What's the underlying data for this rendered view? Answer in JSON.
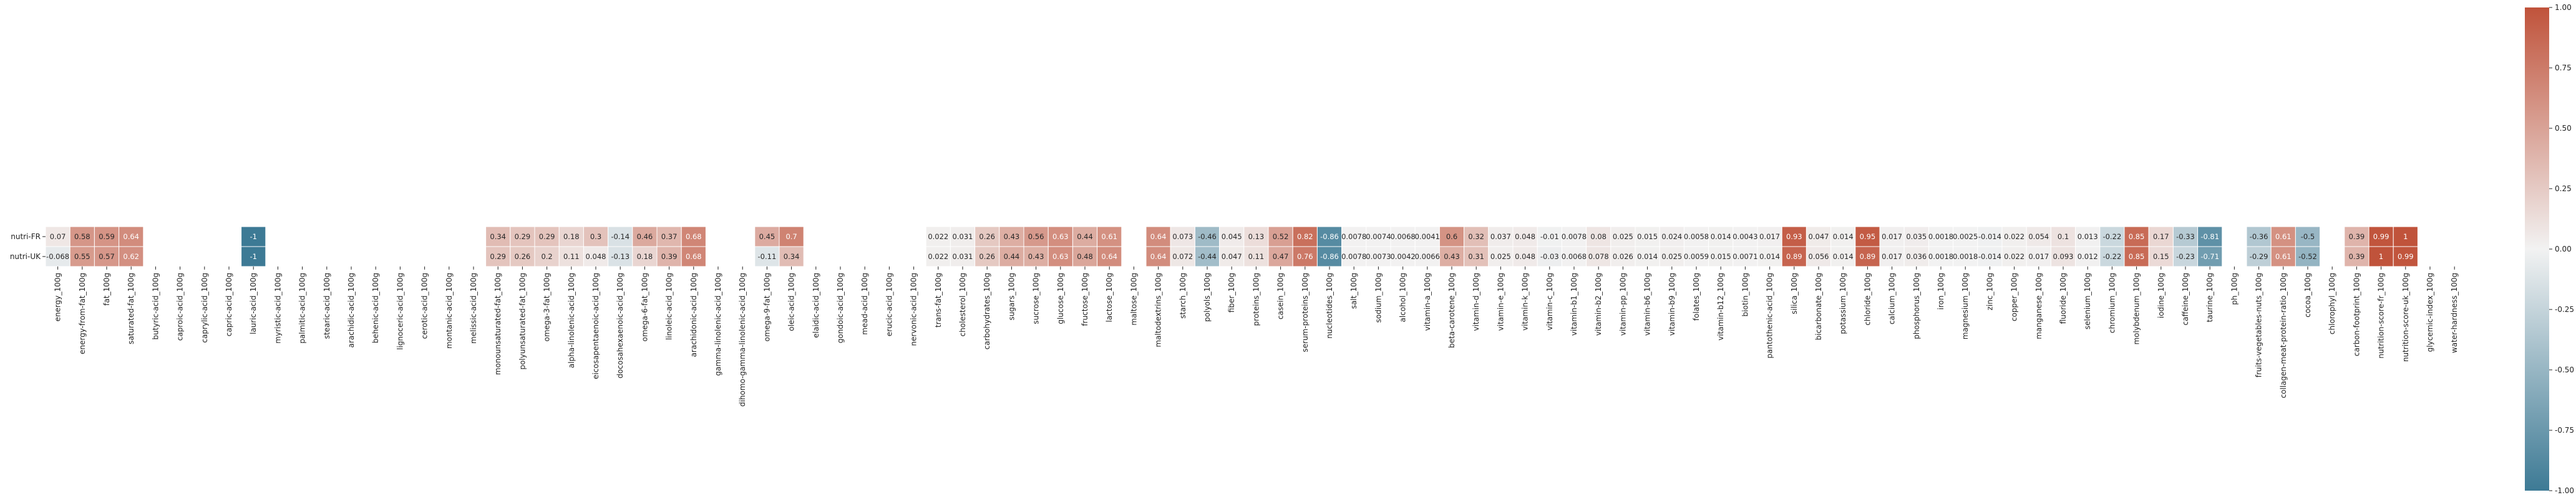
{
  "chart_data": {
    "type": "heatmap",
    "rows": [
      "nutri-FR",
      "nutri-UK"
    ],
    "columns": [
      "energy_100g",
      "energy-from-fat_100g",
      "fat_100g",
      "saturated-fat_100g",
      "butyric-acid_100g",
      "caproic-acid_100g",
      "caprylic-acid_100g",
      "capric-acid_100g",
      "lauric-acid_100g",
      "myristic-acid_100g",
      "palmitic-acid_100g",
      "stearic-acid_100g",
      "arachidic-acid_100g",
      "behenic-acid_100g",
      "lignoceric-acid_100g",
      "cerotic-acid_100g",
      "montanic-acid_100g",
      "melissic-acid_100g",
      "monounsaturated-fat_100g",
      "polyunsaturated-fat_100g",
      "omega-3-fat_100g",
      "alpha-linolenic-acid_100g",
      "eicosapentaenoic-acid_100g",
      "docosahexaenoic-acid_100g",
      "omega-6-fat_100g",
      "linoleic-acid_100g",
      "arachidonic-acid_100g",
      "gamma-linolenic-acid_100g",
      "dihomo-gamma-linolenic-acid_100g",
      "omega-9-fat_100g",
      "oleic-acid_100g",
      "elaidic-acid_100g",
      "gondoic-acid_100g",
      "mead-acid_100g",
      "erucic-acid_100g",
      "nervonic-acid_100g",
      "trans-fat_100g",
      "cholesterol_100g",
      "carbohydrates_100g",
      "sugars_100g",
      "sucrose_100g",
      "glucose_100g",
      "fructose_100g",
      "lactose_100g",
      "maltose_100g",
      "maltodextrins_100g",
      "starch_100g",
      "polyols_100g",
      "fiber_100g",
      "proteins_100g",
      "casein_100g",
      "serum-proteins_100g",
      "nucleotides_100g",
      "salt_100g",
      "sodium_100g",
      "alcohol_100g",
      "vitamin-a_100g",
      "beta-carotene_100g",
      "vitamin-d_100g",
      "vitamin-e_100g",
      "vitamin-k_100g",
      "vitamin-c_100g",
      "vitamin-b1_100g",
      "vitamin-b2_100g",
      "vitamin-pp_100g",
      "vitamin-b6_100g",
      "vitamin-b9_100g",
      "folates_100g",
      "vitamin-b12_100g",
      "biotin_100g",
      "pantothenic-acid_100g",
      "silica_100g",
      "bicarbonate_100g",
      "potassium_100g",
      "chloride_100g",
      "calcium_100g",
      "phosphorus_100g",
      "iron_100g",
      "magnesium_100g",
      "zinc_100g",
      "copper_100g",
      "manganese_100g",
      "fluoride_100g",
      "selenium_100g",
      "chromium_100g",
      "molybdenum_100g",
      "iodine_100g",
      "caffeine_100g",
      "taurine_100g",
      "ph_100g",
      "fruits-vegetables-nuts_100g",
      "collagen-meat-protein-ratio_100g",
      "cocoa_100g",
      "chlorophyl_100g",
      "carbon-footprint_100g",
      "nutrition-score-fr_100g",
      "nutrition-score-uk_100g",
      "glycemic-index_100g",
      "water-hardness_100g"
    ],
    "values": [
      [
        0.07,
        0.58,
        0.59,
        0.64,
        null,
        null,
        null,
        null,
        -1,
        null,
        null,
        null,
        null,
        null,
        null,
        null,
        null,
        null,
        0.34,
        0.29,
        0.29,
        0.18,
        0.3,
        -0.14,
        0.46,
        0.37,
        0.68,
        null,
        null,
        0.45,
        0.7,
        null,
        null,
        null,
        null,
        null,
        0.022,
        0.031,
        0.26,
        0.43,
        0.56,
        0.63,
        0.44,
        0.61,
        null,
        0.64,
        0.073,
        -0.46,
        0.045,
        0.13,
        0.52,
        0.82,
        -0.86,
        0.0078,
        0.0074,
        0.0068,
        0.0041,
        0.6,
        0.32,
        0.037,
        0.048,
        -0.01,
        0.0078,
        0.08,
        0.025,
        0.015,
        0.024,
        0.0058,
        0.014,
        0.0043,
        0.017,
        0.93,
        0.047,
        0.014,
        0.95,
        0.017,
        0.035,
        0.0018,
        0.0025,
        -0.014,
        0.022,
        0.054,
        0.1,
        0.013,
        -0.22,
        0.85,
        0.17,
        -0.33,
        -0.81,
        null,
        -0.36,
        0.61,
        -0.5,
        null,
        0.39,
        0.99,
        1,
        null,
        null
      ],
      [
        -0.068,
        0.55,
        0.57,
        0.62,
        null,
        null,
        null,
        null,
        -1,
        null,
        null,
        null,
        null,
        null,
        null,
        null,
        null,
        null,
        0.29,
        0.26,
        0.2,
        0.11,
        0.048,
        -0.13,
        0.18,
        0.39,
        0.68,
        null,
        null,
        -0.11,
        0.34,
        null,
        null,
        null,
        null,
        null,
        0.022,
        0.031,
        0.26,
        0.44,
        0.43,
        0.63,
        0.48,
        0.64,
        null,
        0.64,
        0.072,
        -0.44,
        0.047,
        0.11,
        0.47,
        0.76,
        -0.86,
        0.0078,
        0.0073,
        0.0042,
        0.0066,
        0.43,
        0.31,
        0.025,
        0.048,
        -0.03,
        0.0068,
        0.078,
        0.026,
        0.014,
        0.025,
        0.0059,
        0.015,
        0.0071,
        0.014,
        0.89,
        0.056,
        0.014,
        0.89,
        0.017,
        0.036,
        0.0018,
        0.0018,
        -0.014,
        0.022,
        0.017,
        0.093,
        0.012,
        -0.22,
        0.85,
        0.15,
        -0.23,
        -0.71,
        null,
        -0.29,
        0.61,
        -0.52,
        null,
        0.39,
        1,
        0.99,
        null,
        null
      ]
    ],
    "value_labels": [
      [
        "0.07",
        "0.58",
        "0.59",
        "0.64",
        "",
        "",
        "",
        "",
        "-1",
        "",
        "",
        "",
        "",
        "",
        "",
        "",
        "",
        "",
        "0.34",
        "0.29",
        "0.29",
        "0.18",
        "0.3",
        "-0.14",
        "0.46",
        "0.37",
        "0.68",
        "",
        "",
        "0.45",
        "0.7",
        "",
        "",
        "",
        "",
        "",
        "0.022",
        "0.031",
        "0.26",
        "0.43",
        "0.56",
        "0.63",
        "0.44",
        "0.61",
        "",
        "0.64",
        "0.073",
        "-0.46",
        "0.045",
        "0.13",
        "0.52",
        "0.82",
        "-0.86",
        "0.0078",
        "0.0074",
        "0.0068",
        "0.0041",
        "0.6",
        "0.32",
        "0.037",
        "0.048",
        "-0.01",
        "0.0078",
        "0.08",
        "0.025",
        "0.015",
        "0.024",
        "0.0058",
        "0.014",
        "0.0043",
        "0.017",
        "0.93",
        "0.047",
        "0.014",
        "0.95",
        "0.017",
        "0.035",
        "0.0018",
        "0.0025",
        "-0.014",
        "0.022",
        "0.054",
        "0.1",
        "0.013",
        "-0.22",
        "0.85",
        "0.17",
        "-0.33",
        "-0.81",
        "",
        "-0.36",
        "0.61",
        "-0.5",
        "",
        "0.39",
        "0.99",
        "1",
        "",
        ""
      ],
      [
        "-0.068",
        "0.55",
        "0.57",
        "0.62",
        "",
        "",
        "",
        "",
        "-1",
        "",
        "",
        "",
        "",
        "",
        "",
        "",
        "",
        "",
        "0.29",
        "0.26",
        "0.2",
        "0.11",
        "0.048",
        "-0.13",
        "0.18",
        "0.39",
        "0.68",
        "",
        "",
        "-0.11",
        "0.34",
        "",
        "",
        "",
        "",
        "",
        "0.022",
        "0.031",
        "0.26",
        "0.44",
        "0.43",
        "0.63",
        "0.48",
        "0.64",
        "",
        "0.64",
        "0.072",
        "-0.44",
        "0.047",
        "0.11",
        "0.47",
        "0.76",
        "-0.86",
        "0.0078",
        "0.0073",
        "0.0042",
        "0.0066",
        "0.43",
        "0.31",
        "0.025",
        "0.048",
        "-0.03",
        "0.0068",
        "0.078",
        "0.026",
        "0.014",
        "0.025",
        "0.0059",
        "0.015",
        "0.0071",
        "0.014",
        "0.89",
        "0.056",
        "0.014",
        "0.89",
        "0.017",
        "0.036",
        "0.0018",
        "0.0018",
        "-0.014",
        "0.022",
        "0.017",
        "0.093",
        "0.012",
        "-0.22",
        "0.85",
        "0.15",
        "-0.23",
        "-0.71",
        "",
        "-0.29",
        "0.61",
        "-0.52",
        "",
        "0.39",
        "1",
        "0.99",
        "",
        ""
      ]
    ],
    "colorbar": {
      "range": [
        -1,
        1
      ],
      "ticks": [
        "1.00",
        "0.75",
        "0.50",
        "0.25",
        "0.00",
        "-0.25",
        "-0.50",
        "-0.75",
        "-1.00"
      ],
      "negative_color": "#3d7a95",
      "middle_color": "#f2f2f2",
      "positive_color": "#c0533b"
    },
    "grid": false
  }
}
